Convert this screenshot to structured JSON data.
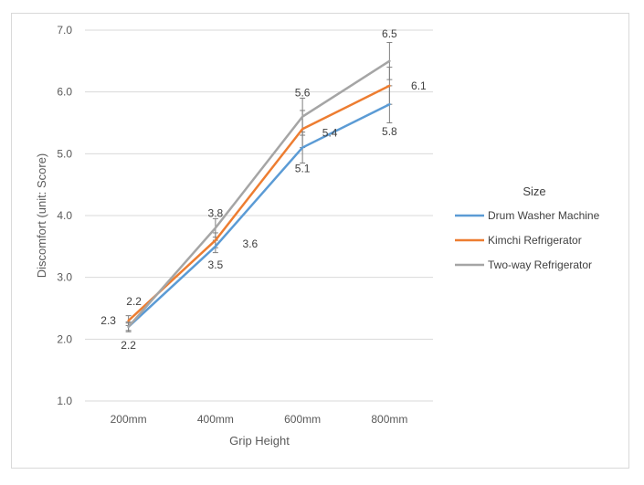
{
  "chart_data": {
    "type": "line",
    "xlabel": "Grip Height",
    "ylabel": "Discomfort (unit: Score)",
    "categories": [
      "200mm",
      "400mm",
      "600mm",
      "800mm"
    ],
    "ylim": [
      1.0,
      7.0
    ],
    "yticks": [
      "1.0",
      "2.0",
      "3.0",
      "4.0",
      "5.0",
      "6.0",
      "7.0"
    ],
    "grid": true,
    "legend_title": "Size",
    "legend_position": "right",
    "series": [
      {
        "name": "Drum Washer Machine",
        "color": "#5b9bd5",
        "values": [
          2.2,
          3.5,
          5.1,
          5.8
        ],
        "error": [
          0.06,
          0.1,
          0.25,
          0.3
        ],
        "labels": [
          "2.2",
          "3.5",
          "5.1",
          "5.8"
        ]
      },
      {
        "name": "Kimchi Refrigerator",
        "color": "#ed7d31",
        "values": [
          2.3,
          3.6,
          5.4,
          6.1
        ],
        "error": [
          0.08,
          0.12,
          0.3,
          0.3
        ],
        "labels": [
          "2.3",
          "3.6",
          "5.4",
          "6.1"
        ]
      },
      {
        "name": "Two-way Refrigerator",
        "color": "#a5a5a5",
        "values": [
          2.2,
          3.8,
          5.6,
          6.5
        ],
        "error": [
          0.08,
          0.15,
          0.3,
          0.3
        ],
        "labels": [
          "2.2",
          "3.8",
          "5.6",
          "6.5"
        ]
      }
    ]
  }
}
